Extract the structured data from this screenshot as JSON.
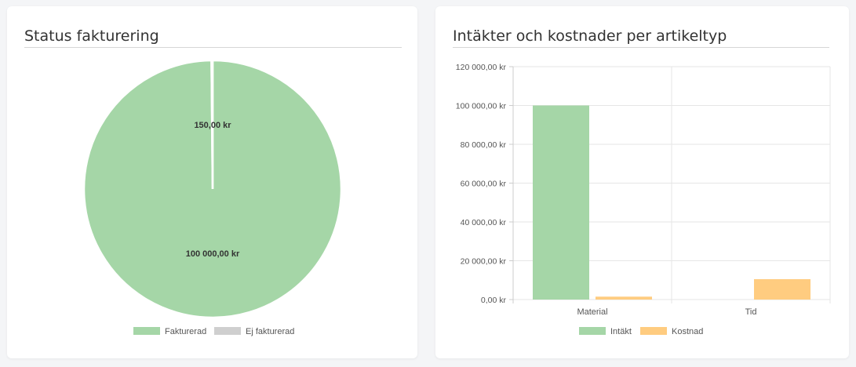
{
  "left_card": {
    "title": "Status fakturering"
  },
  "right_card": {
    "title": "Intäkter och kostnader per artikeltyp"
  },
  "colors": {
    "green": "#a5d6a7",
    "orange": "#ffcc80",
    "grey": "#cfcfcf",
    "grid": "#e6e6e6"
  },
  "chart_data": [
    {
      "type": "pie",
      "title": "Status fakturering",
      "slices": [
        {
          "label": "Fakturerad",
          "value": 100000,
          "display": "100 000,00 kr",
          "color": "#a5d6a7"
        },
        {
          "label": "Ej fakturerad",
          "value": 150,
          "display": "150,00 kr",
          "color": "#cfcfcf"
        }
      ],
      "legend": [
        "Fakturerad",
        "Ej fakturerad"
      ],
      "legend_position": "bottom"
    },
    {
      "type": "bar",
      "title": "Intäkter och kostnader per artikeltyp",
      "categories": [
        "Material",
        "Tid"
      ],
      "series": [
        {
          "name": "Intäkt",
          "values": [
            100000,
            0
          ],
          "color": "#a5d6a7"
        },
        {
          "name": "Kostnad",
          "values": [
            1500,
            10500
          ],
          "color": "#ffcc80"
        }
      ],
      "ylim": [
        0,
        120000
      ],
      "yticks": [
        {
          "value": 120000,
          "label": "120 000,00 kr"
        },
        {
          "value": 100000,
          "label": "100 000,00 kr"
        },
        {
          "value": 80000,
          "label": "80 000,00 kr"
        },
        {
          "value": 60000,
          "label": "60 000,00 kr"
        },
        {
          "value": 40000,
          "label": "40 000,00 kr"
        },
        {
          "value": 20000,
          "label": "20 000,00 kr"
        },
        {
          "value": 0,
          "label": "0,00 kr"
        }
      ],
      "grid": true,
      "legend_position": "bottom"
    }
  ]
}
